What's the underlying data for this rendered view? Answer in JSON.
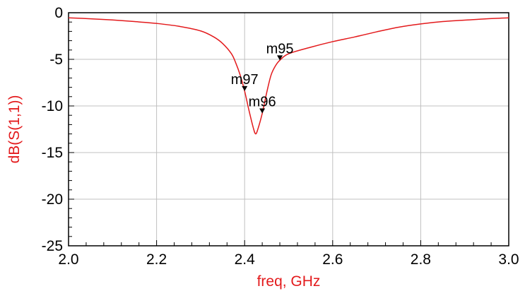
{
  "chart_data": {
    "type": "line",
    "title": "",
    "xlabel": "freq, GHz",
    "ylabel": "dB(S(1,1))",
    "xlim": [
      2.0,
      3.0
    ],
    "ylim": [
      -25,
      0
    ],
    "grid": true,
    "x_ticks": [
      2.0,
      2.2,
      2.4,
      2.6,
      2.8,
      3.0
    ],
    "x_tick_labels": [
      "2.0",
      "2.2",
      "2.4",
      "2.6",
      "2.8",
      "3.0"
    ],
    "y_ticks": [
      0,
      -5,
      -10,
      -15,
      -20,
      -25
    ],
    "y_tick_labels": [
      "0",
      "-5",
      "-10",
      "-15",
      "-20",
      "-25"
    ],
    "series": [
      {
        "color": "#e31a1c",
        "x": [
          2.0,
          2.05,
          2.1,
          2.15,
          2.2,
          2.25,
          2.3,
          2.33,
          2.35,
          2.37,
          2.38,
          2.39,
          2.4,
          2.41,
          2.42,
          2.425,
          2.43,
          2.44,
          2.45,
          2.46,
          2.47,
          2.48,
          2.5,
          2.55,
          2.6,
          2.65,
          2.7,
          2.75,
          2.8,
          2.85,
          2.9,
          2.95,
          3.0
        ],
        "y": [
          -0.55,
          -0.65,
          -0.78,
          -0.95,
          -1.15,
          -1.45,
          -1.95,
          -2.6,
          -3.3,
          -4.4,
          -5.4,
          -6.7,
          -8.4,
          -10.5,
          -12.4,
          -13.0,
          -12.5,
          -10.8,
          -8.6,
          -6.7,
          -5.7,
          -5.1,
          -4.4,
          -3.7,
          -3.1,
          -2.6,
          -2.05,
          -1.55,
          -1.2,
          -0.95,
          -0.8,
          -0.65,
          -0.55
        ]
      }
    ],
    "markers": [
      {
        "label": "m95",
        "x": 2.48,
        "y": -5.1
      },
      {
        "label": "m97",
        "x": 2.4,
        "y": -8.4
      },
      {
        "label": "m96",
        "x": 2.44,
        "y": -10.8
      }
    ]
  }
}
